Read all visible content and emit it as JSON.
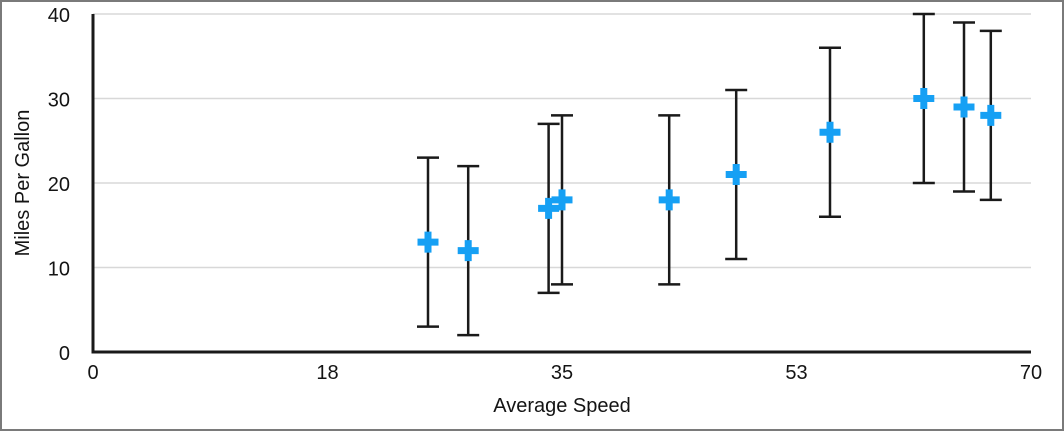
{
  "chart_data": {
    "type": "scatter",
    "title": "",
    "xlabel": "Average Speed",
    "ylabel": "Miles Per Gallon",
    "xlim": [
      0,
      70
    ],
    "ylim": [
      0,
      40
    ],
    "x_ticks": [
      {
        "pos": 0,
        "label": "0"
      },
      {
        "pos": 17.5,
        "label": "18"
      },
      {
        "pos": 35,
        "label": "35"
      },
      {
        "pos": 52.5,
        "label": "53"
      },
      {
        "pos": 70,
        "label": "70"
      }
    ],
    "y_ticks": [
      {
        "pos": 0,
        "label": "0"
      },
      {
        "pos": 10,
        "label": "10"
      },
      {
        "pos": 20,
        "label": "20"
      },
      {
        "pos": 30,
        "label": "30"
      },
      {
        "pos": 40,
        "label": "40"
      }
    ],
    "grid": "horizontal",
    "legend": "none",
    "marker": "plus",
    "points": [
      {
        "x": 25,
        "y": 13,
        "error_plus": 10,
        "error_minus": 10
      },
      {
        "x": 28,
        "y": 12,
        "error_plus": 10,
        "error_minus": 10
      },
      {
        "x": 34,
        "y": 17,
        "error_plus": 10,
        "error_minus": 10
      },
      {
        "x": 35,
        "y": 18,
        "error_plus": 10,
        "error_minus": 10
      },
      {
        "x": 43,
        "y": 18,
        "error_plus": 10,
        "error_minus": 10
      },
      {
        "x": 48,
        "y": 21,
        "error_plus": 10,
        "error_minus": 10
      },
      {
        "x": 55,
        "y": 26,
        "error_plus": 10,
        "error_minus": 10
      },
      {
        "x": 62,
        "y": 30,
        "error_plus": 10,
        "error_minus": 10
      },
      {
        "x": 65,
        "y": 29,
        "error_plus": 10,
        "error_minus": 10
      },
      {
        "x": 67,
        "y": 28,
        "error_plus": 10,
        "error_minus": 10
      }
    ],
    "colors": {
      "marker": "#16A0F4",
      "error_bar": "#1a1a1a",
      "axis": "#1a1a1a",
      "gridline": "#d8d8d8",
      "text": "#141414",
      "background": "#ffffff",
      "frame_border": "#7a7a7a"
    }
  }
}
